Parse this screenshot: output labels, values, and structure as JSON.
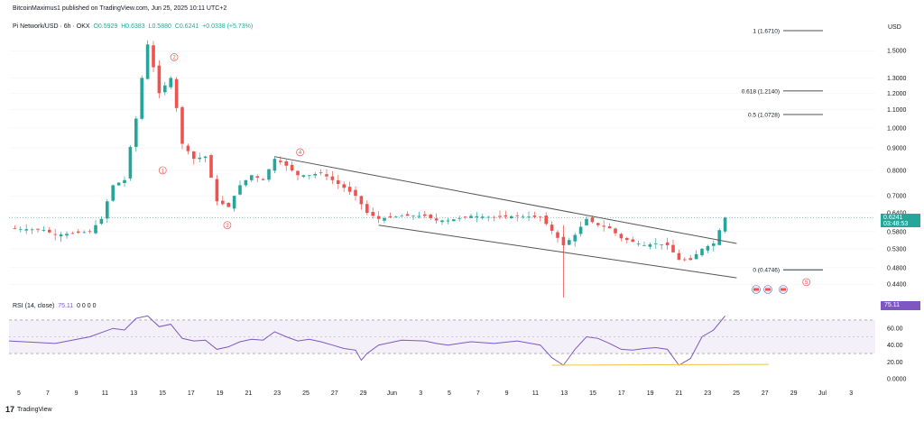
{
  "header": {
    "published": "BitcoinMaximus1 published on TradingView.com, Jun 25, 2025 10:11 UTC+2"
  },
  "symbol_bar": {
    "name": "Pi Network/USD · 6h · OKX",
    "open": "O0.5929",
    "high": "H0.6383",
    "low": "L0.5880",
    "close": "C0.6241",
    "change": "+0.0338 (+5.73%)"
  },
  "rsi_label": {
    "name": "RSI (14, close)",
    "value": "75.11",
    "extras": "0 0 0 0"
  },
  "price_tag": {
    "price": "0.6241",
    "countdown": "03:48:53"
  },
  "rsi_tag": "75.11",
  "currency": "USD",
  "footer": {
    "brand": "TradingView",
    "mark": "17"
  },
  "colors": {
    "up": "#26a69a",
    "down": "#ef5350",
    "rsi": "#7e57c2",
    "channel": "#555555",
    "fib": "#131722",
    "support": "#f0c24a"
  },
  "chart_data": {
    "type": "candlestick",
    "price_axis": {
      "scale": "log",
      "ticks": [
        "1.5000",
        "1.3000",
        "1.2000",
        "1.1000",
        "1.0000",
        "0.9000",
        "0.8000",
        "0.7000",
        "0.6400",
        "0.5800",
        "0.5300",
        "0.4800",
        "0.4400"
      ]
    },
    "rsi_axis": {
      "ticks": [
        "60.00",
        "40.00",
        "20.00",
        "0.0000"
      ],
      "overbought": 70,
      "oversold": 30
    },
    "x_ticks": [
      "5",
      "7",
      "9",
      "11",
      "13",
      "15",
      "17",
      "19",
      "21",
      "23",
      "25",
      "27",
      "29",
      "Jun",
      "3",
      "5",
      "7",
      "9",
      "11",
      "13",
      "15",
      "17",
      "19",
      "21",
      "23",
      "25",
      "27",
      "29",
      "Jul",
      "3"
    ],
    "price_path": [
      [
        0,
        0.59
      ],
      [
        3,
        0.585
      ],
      [
        4,
        0.57
      ],
      [
        7,
        0.58
      ],
      [
        8,
        0.62
      ],
      [
        9,
        0.74
      ],
      [
        10,
        0.76
      ],
      [
        11,
        1.05
      ],
      [
        12,
        1.55
      ],
      [
        13,
        1.2
      ],
      [
        14,
        1.3
      ],
      [
        15,
        0.92
      ],
      [
        16,
        0.85
      ],
      [
        17,
        0.86
      ],
      [
        18,
        0.68
      ],
      [
        19,
        0.66
      ],
      [
        20,
        0.74
      ],
      [
        21,
        0.78
      ],
      [
        22,
        0.76
      ],
      [
        23,
        0.85
      ],
      [
        24,
        0.82
      ],
      [
        25,
        0.78
      ],
      [
        26,
        0.78
      ],
      [
        27,
        0.79
      ],
      [
        28,
        0.76
      ],
      [
        29,
        0.73
      ],
      [
        30,
        0.7
      ],
      [
        31,
        0.64
      ],
      [
        32,
        0.62
      ],
      [
        34,
        0.63
      ],
      [
        36,
        0.63
      ],
      [
        37,
        0.615
      ],
      [
        38,
        0.615
      ],
      [
        40,
        0.63
      ],
      [
        42,
        0.625
      ],
      [
        44,
        0.63
      ],
      [
        46,
        0.625
      ],
      [
        48,
        0.54
      ],
      [
        49,
        0.57
      ],
      [
        50,
        0.62
      ],
      [
        51,
        0.6
      ],
      [
        52,
        0.59
      ],
      [
        53,
        0.56
      ],
      [
        54,
        0.55
      ],
      [
        55,
        0.54
      ],
      [
        56,
        0.545
      ],
      [
        57,
        0.54
      ],
      [
        58,
        0.5
      ],
      [
        59,
        0.5
      ],
      [
        60,
        0.53
      ],
      [
        61,
        0.545
      ],
      [
        62,
        0.6241
      ]
    ],
    "rsi_path": [
      [
        0,
        45
      ],
      [
        4,
        42
      ],
      [
        7,
        50
      ],
      [
        8,
        55
      ],
      [
        9,
        60
      ],
      [
        10,
        58
      ],
      [
        11,
        72
      ],
      [
        12,
        75
      ],
      [
        13,
        62
      ],
      [
        14,
        65
      ],
      [
        15,
        48
      ],
      [
        16,
        45
      ],
      [
        17,
        46
      ],
      [
        18,
        35
      ],
      [
        19,
        38
      ],
      [
        20,
        44
      ],
      [
        21,
        47
      ],
      [
        22,
        46
      ],
      [
        23,
        56
      ],
      [
        24,
        50
      ],
      [
        25,
        45
      ],
      [
        26,
        47
      ],
      [
        27,
        44
      ],
      [
        28,
        40
      ],
      [
        29,
        36
      ],
      [
        30,
        34
      ],
      [
        30.5,
        22
      ],
      [
        31,
        30
      ],
      [
        32,
        40
      ],
      [
        34,
        46
      ],
      [
        36,
        45
      ],
      [
        37,
        42
      ],
      [
        38,
        40
      ],
      [
        40,
        44
      ],
      [
        42,
        42
      ],
      [
        44,
        45
      ],
      [
        46,
        40
      ],
      [
        47,
        25
      ],
      [
        48,
        16
      ],
      [
        49,
        35
      ],
      [
        50,
        50
      ],
      [
        51,
        48
      ],
      [
        52,
        42
      ],
      [
        53,
        35
      ],
      [
        54,
        34
      ],
      [
        55,
        36
      ],
      [
        56,
        37
      ],
      [
        57,
        35
      ],
      [
        58,
        16
      ],
      [
        59,
        24
      ],
      [
        60,
        50
      ],
      [
        61,
        58
      ],
      [
        62,
        75
      ]
    ],
    "wave_labels": [
      "1",
      "2",
      "3",
      "4",
      "5"
    ],
    "fib_levels": [
      {
        "label": "1 (1.6710)",
        "value": 1.671
      },
      {
        "label": "0.618 (1.2140)",
        "value": 1.214
      },
      {
        "label": "0.5 (1.0728)",
        "value": 1.0728
      },
      {
        "label": "0 (0.4746)",
        "value": 0.4746
      }
    ],
    "channel": {
      "upper": [
        [
          23,
          0.86
        ],
        [
          63,
          0.545
        ]
      ],
      "lower": [
        [
          32,
          0.6
        ],
        [
          63,
          0.455
        ]
      ]
    },
    "last_price": 0.6241,
    "last_rsi": 75.11
  }
}
